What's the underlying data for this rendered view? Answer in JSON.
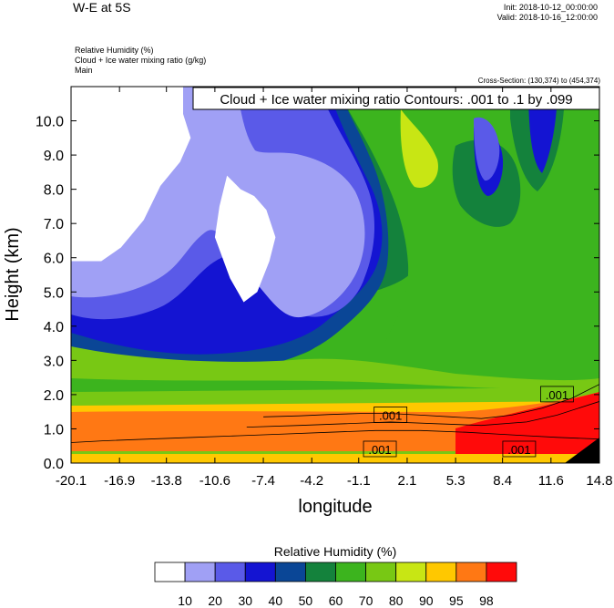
{
  "header": {
    "title": "W-E at 5S",
    "init": "Init: 2018-10-12_00:00:00",
    "valid": "Valid: 2018-10-16_12:00:00",
    "field1": "Relative Humidity   (%)",
    "field2": "Cloud + Ice water mixing ratio   (g/kg)",
    "field3": "Main",
    "cross_section": "Cross-Section: (130,374) to (454,374)"
  },
  "chart_data": {
    "type": "heatmap",
    "title": "",
    "contour_label": "Cloud + Ice water mixing ratio Contours: .001 to .1 by .099",
    "xlabel": "longitude",
    "ylabel": "Height (km)",
    "x_ticks": [
      "-20.1",
      "-16.9",
      "-13.8",
      "-10.6",
      "-7.4",
      "-4.2",
      "-1.1",
      "2.1",
      "5.3",
      "8.4",
      "11.6",
      "14.8"
    ],
    "y_ticks": [
      "0.0",
      "1.0",
      "2.0",
      "3.0",
      "4.0",
      "5.0",
      "6.0",
      "7.0",
      "8.0",
      "9.0",
      "10.0"
    ],
    "xlim": [
      -20.1,
      14.8
    ],
    "ylim": [
      0.0,
      11.0
    ],
    "contour_labels": [
      {
        "text": ".001",
        "x": 1.0,
        "y": 1.4
      },
      {
        "text": ".001",
        "x": 0.3,
        "y": 0.4
      },
      {
        "text": ".001",
        "x": 9.5,
        "y": 0.4
      },
      {
        "text": ".001",
        "x": 12.0,
        "y": 2.0
      }
    ],
    "colorbar": {
      "title": "Relative Humidity  (%)",
      "levels": [
        "10",
        "20",
        "30",
        "40",
        "50",
        "60",
        "70",
        "80",
        "90",
        "95",
        "98"
      ],
      "colors": [
        "#ffffff",
        "#a0a0f5",
        "#5a5ae8",
        "#1414d2",
        "#0a4696",
        "#14823c",
        "#3cb41e",
        "#78c814",
        "#c8e614",
        "#ffc800",
        "#ff7814",
        "#ff0a0a"
      ]
    },
    "field_regions": [
      {
        "name": "upper-left-dry",
        "rh": 5,
        "points": [
          [
            -20.1,
            11
          ],
          [
            -12.7,
            11
          ],
          [
            -12.7,
            10.2
          ],
          [
            -12.2,
            9.5
          ],
          [
            -12.9,
            8.8
          ],
          [
            -14.2,
            8.1
          ],
          [
            -15.3,
            7.1
          ],
          [
            -16.8,
            6.3
          ],
          [
            -18.1,
            5.9
          ],
          [
            -20.1,
            5.9
          ]
        ]
      },
      {
        "name": "center-dry",
        "rh": 5,
        "points": [
          [
            -10.3,
            7.5
          ],
          [
            -9.8,
            8.4
          ],
          [
            -8.9,
            8.0
          ],
          [
            -8.0,
            7.8
          ],
          [
            -7.2,
            7.4
          ],
          [
            -6.6,
            6.6
          ],
          [
            -7.0,
            5.9
          ],
          [
            -7.8,
            5.0
          ],
          [
            -8.7,
            4.7
          ],
          [
            -9.6,
            5.4
          ],
          [
            -10.6,
            6.6
          ]
        ]
      }
    ]
  },
  "cloud_contours": [
    [
      [
        -20.1,
        0.6
      ],
      [
        -18,
        0.65
      ],
      [
        -15,
        0.7
      ],
      [
        -12,
        0.75
      ],
      [
        -9,
        0.8
      ],
      [
        -6,
        0.85
      ],
      [
        -3,
        0.9
      ],
      [
        0,
        0.95
      ],
      [
        3,
        0.95
      ],
      [
        6,
        0.9
      ],
      [
        8,
        0.85
      ],
      [
        10,
        0.8
      ],
      [
        12,
        0.75
      ],
      [
        14.8,
        0.7
      ]
    ],
    [
      [
        -7.4,
        1.35
      ],
      [
        -5,
        1.38
      ],
      [
        -3,
        1.42
      ],
      [
        -1,
        1.45
      ],
      [
        1,
        1.45
      ],
      [
        3,
        1.4
      ],
      [
        5,
        1.35
      ],
      [
        7,
        1.3
      ],
      [
        9,
        1.4
      ],
      [
        11,
        1.6
      ],
      [
        13,
        1.9
      ],
      [
        14.8,
        2.3
      ]
    ],
    [
      [
        -8.5,
        1.05
      ],
      [
        -5,
        1.1
      ],
      [
        -2,
        1.15
      ],
      [
        1,
        1.2
      ],
      [
        4,
        1.15
      ],
      [
        7,
        1.1
      ],
      [
        10,
        1.2
      ],
      [
        12,
        1.4
      ],
      [
        14.8,
        1.8
      ]
    ]
  ]
}
